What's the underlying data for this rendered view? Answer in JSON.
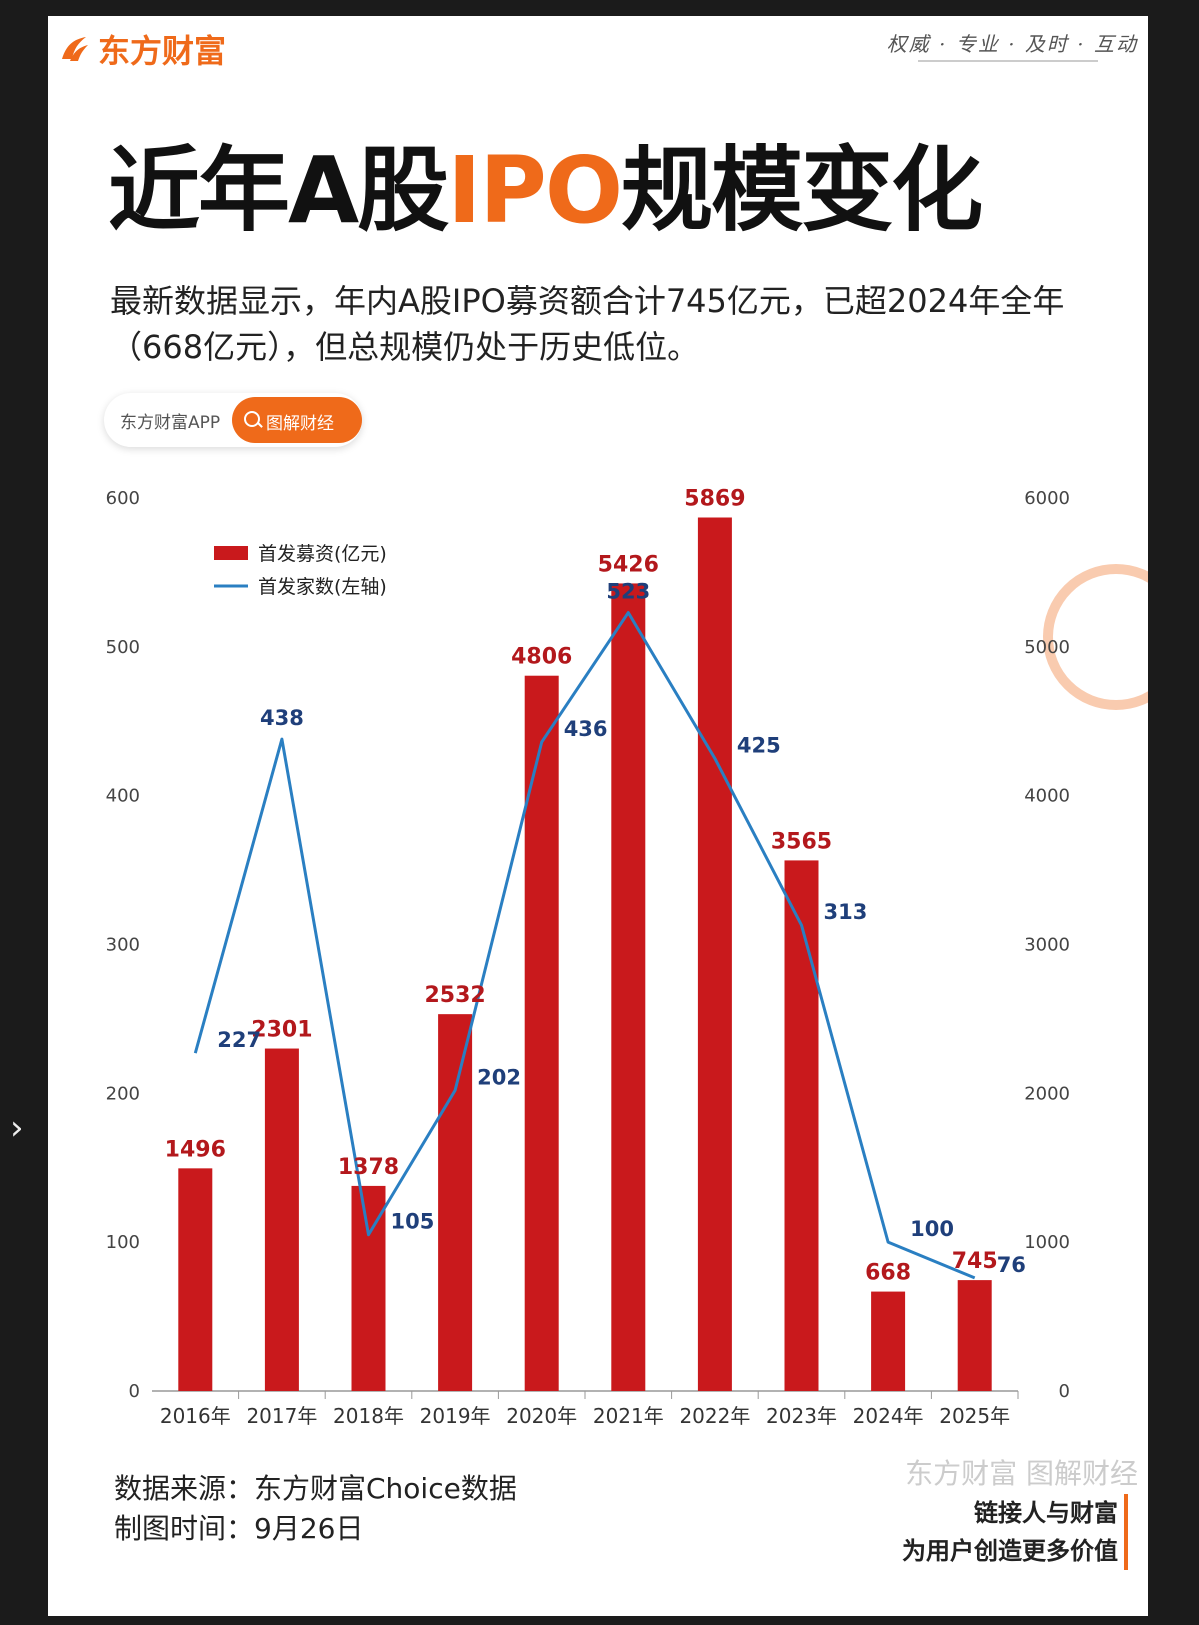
{
  "brand": {
    "name": "东方财富",
    "slogan": "权威 · 专业 · 及时 · 互动",
    "accent": "#ef6a1a"
  },
  "title": {
    "part1": "近年A股",
    "accent": "IPO",
    "part2": "规模变化"
  },
  "subtitle": "最新数据显示，年内A股IPO募资额合计745亿元，已超2024年全年（668亿元），但总规模仍处于历史低位。",
  "search_pill": {
    "app": "东方财富APP",
    "button": "图解财经"
  },
  "chart_data": {
    "type": "bar",
    "categories": [
      "2016年",
      "2017年",
      "2018年",
      "2019年",
      "2020年",
      "2021年",
      "2022年",
      "2023年",
      "2024年",
      "2025年"
    ],
    "series": [
      {
        "name": "首发募资(亿元)",
        "type": "bar",
        "axis": "right",
        "color": "#c9191c",
        "values": [
          1496,
          2301,
          1378,
          2532,
          4806,
          5426,
          5869,
          3565,
          668,
          745
        ]
      },
      {
        "name": "首发家数(左轴)",
        "type": "line",
        "axis": "left",
        "color": "#2a7fc2",
        "values": [
          227,
          438,
          105,
          202,
          436,
          523,
          425,
          313,
          100,
          76
        ]
      }
    ],
    "left_axis": {
      "min": 0,
      "max": 600,
      "ticks": [
        0,
        100,
        200,
        300,
        400,
        500,
        600
      ]
    },
    "right_axis": {
      "min": 0,
      "max": 6000,
      "ticks": [
        0,
        1000,
        2000,
        3000,
        4000,
        5000,
        6000
      ]
    },
    "legend_position": "top-left",
    "grid": false
  },
  "footer": {
    "source": "数据来源：东方财富Choice数据",
    "date": "制图时间：9月26日",
    "tag1": "链接人与财富",
    "tag2": "为用户创造更多价值",
    "watermark": "东方财富 图解财经"
  }
}
